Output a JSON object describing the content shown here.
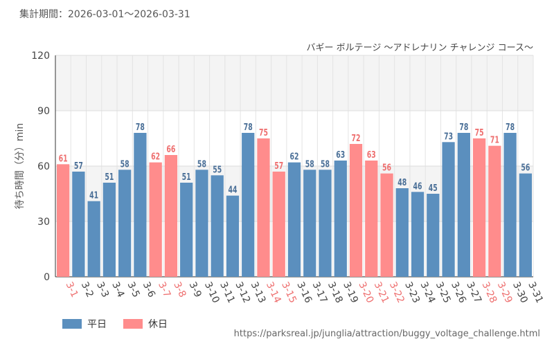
{
  "header": {
    "period": "集計期間：2026-03-01～2026-03-31"
  },
  "chart_data": {
    "type": "bar",
    "title": "バギー ボルテージ ～アドレナリン チャレンジ コース～",
    "ylabel": "待ち時間（分）min",
    "xlabel": "",
    "ylim": [
      0,
      120
    ],
    "yticks": [
      0,
      30,
      60,
      90,
      120
    ],
    "grid": true,
    "legend_position": "bottom-left",
    "colors": {
      "weekday": "#5b8fbe",
      "holiday": "#ff8c8c",
      "holiday_label": "#ee6f6f",
      "weekday_label": "#4a6f97"
    },
    "categories": [
      "3-1",
      "3-2",
      "3-3",
      "3-4",
      "3-5",
      "3-6",
      "3-7",
      "3-8",
      "3-9",
      "3-10",
      "3-11",
      "3-12",
      "3-13",
      "3-14",
      "3-15",
      "3-16",
      "3-17",
      "3-18",
      "3-19",
      "3-20",
      "3-21",
      "3-22",
      "3-23",
      "3-24",
      "3-25",
      "3-26",
      "3-27",
      "3-28",
      "3-29",
      "3-30",
      "3-31"
    ],
    "values": [
      61,
      57,
      41,
      51,
      58,
      78,
      62,
      66,
      51,
      58,
      55,
      44,
      78,
      75,
      57,
      62,
      58,
      58,
      63,
      72,
      63,
      56,
      48,
      46,
      45,
      73,
      78,
      75,
      71,
      78,
      56
    ],
    "day_type": [
      "holiday",
      "weekday",
      "weekday",
      "weekday",
      "weekday",
      "weekday",
      "holiday",
      "holiday",
      "weekday",
      "weekday",
      "weekday",
      "weekday",
      "weekday",
      "holiday",
      "holiday",
      "weekday",
      "weekday",
      "weekday",
      "weekday",
      "holiday",
      "holiday",
      "holiday",
      "weekday",
      "weekday",
      "weekday",
      "weekday",
      "weekday",
      "holiday",
      "holiday",
      "weekday",
      "weekday"
    ],
    "legend": [
      {
        "key": "weekday",
        "label": "平日"
      },
      {
        "key": "holiday",
        "label": "休日"
      }
    ]
  },
  "footer": {
    "source": "https://parksreal.jp/junglia/attraction/buggy_voltage_challenge.html"
  }
}
